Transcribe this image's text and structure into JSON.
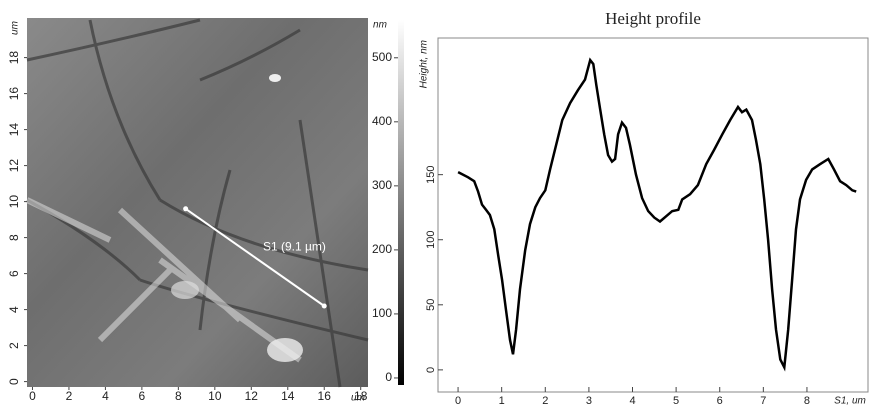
{
  "chart_data": [
    {
      "type": "image",
      "xlim": [
        -0.3,
        18.4
      ],
      "ylim": [
        -0.3,
        20.2
      ],
      "xticks": [
        0,
        2,
        4,
        6,
        8,
        10,
        12,
        14,
        16,
        18
      ],
      "yticks": [
        0,
        2,
        4,
        6,
        8,
        10,
        12,
        14,
        16,
        18
      ],
      "x_unit": "um",
      "y_unit": "um",
      "colorbar": {
        "label": "nm",
        "lim": [
          -11,
          559
        ],
        "ticks": [
          0,
          100,
          200,
          300,
          400,
          500
        ]
      },
      "annotation": {
        "text": "S1 (9.1 µm)",
        "x": [
          8.4,
          16
        ],
        "y": [
          9.6,
          4.2
        ],
        "color": "#ffffff"
      }
    },
    {
      "type": "line",
      "title": "Height profile",
      "x_label": "S1, um",
      "y_label": "Height, nm",
      "color": "#000000",
      "xlim": [
        -0.46,
        9.4
      ],
      "ylim": [
        -17,
        255
      ],
      "xticks": [
        0,
        1,
        2,
        3,
        4,
        5,
        6,
        7,
        8
      ],
      "yticks": [
        0,
        50,
        100,
        150
      ],
      "x": [
        0,
        0.23,
        0.37,
        0.46,
        0.55,
        0.64,
        0.73,
        0.83,
        0.92,
        1.01,
        1.1,
        1.19,
        1.26,
        1.33,
        1.42,
        1.54,
        1.65,
        1.77,
        1.88,
        2.0,
        2.11,
        2.25,
        2.39,
        2.57,
        2.75,
        2.91,
        3.03,
        3.1,
        3.17,
        3.26,
        3.35,
        3.44,
        3.53,
        3.6,
        3.67,
        3.76,
        3.85,
        3.94,
        4.08,
        4.22,
        4.36,
        4.5,
        4.63,
        4.77,
        4.91,
        5.05,
        5.14,
        5.32,
        5.5,
        5.69,
        5.87,
        6.06,
        6.24,
        6.42,
        6.51,
        6.61,
        6.74,
        6.83,
        6.93,
        7.02,
        7.11,
        7.2,
        7.29,
        7.39,
        7.48,
        7.57,
        7.66,
        7.75,
        7.84,
        7.98,
        8.12,
        8.3,
        8.49,
        8.62,
        8.76,
        8.9,
        9.04,
        9.13
      ],
      "values": [
        152,
        148,
        145,
        137,
        127,
        123,
        119,
        108,
        88,
        69,
        46,
        23,
        12,
        31,
        62,
        92,
        112,
        125,
        132,
        138,
        154,
        173,
        192,
        205,
        215,
        223,
        238,
        235,
        219,
        200,
        181,
        165,
        160,
        162,
        181,
        190,
        186,
        173,
        150,
        132,
        122,
        117,
        114,
        118,
        122,
        123,
        131,
        135,
        142,
        158,
        169,
        181,
        192,
        202,
        198,
        200,
        192,
        177,
        158,
        131,
        100,
        62,
        31,
        8,
        2,
        31,
        69,
        108,
        131,
        146,
        154,
        158,
        162,
        154,
        145,
        142,
        138,
        137
      ]
    }
  ]
}
